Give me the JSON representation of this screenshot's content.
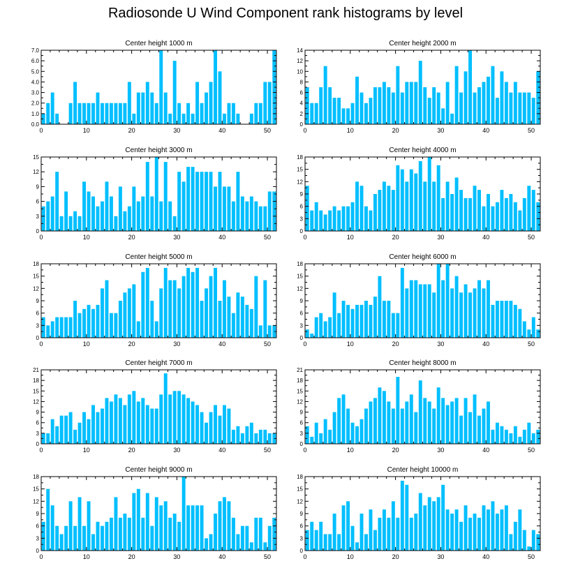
{
  "title": "Radiosonde U Wind Component rank histograms by level",
  "colors": {
    "bar": "#00BFFF",
    "axis": "#000000"
  },
  "chart_data": [
    {
      "type": "bar",
      "title": "Center height 1000 m",
      "xlim": [
        0,
        52
      ],
      "xticks": [
        0,
        10,
        20,
        30,
        40,
        50
      ],
      "ylim": [
        0,
        7
      ],
      "yticks": [
        0,
        1,
        2,
        3,
        4,
        5,
        6,
        7
      ],
      "ytick_labels": [
        "0.0",
        "1.0",
        "2.0",
        "3.0",
        "4.0",
        "5.0",
        "6.0",
        "7.0"
      ],
      "values": [
        1,
        2,
        3,
        1,
        0,
        0,
        2,
        4,
        2,
        2,
        2,
        2,
        3,
        2,
        2,
        2,
        2,
        2,
        2,
        4,
        1,
        3,
        3,
        4,
        3,
        2,
        7,
        3,
        1,
        6,
        2,
        1,
        2,
        1,
        4,
        2,
        3,
        4,
        7,
        5,
        1,
        2,
        2,
        1,
        0,
        0,
        1,
        2,
        2,
        4,
        4,
        7
      ]
    },
    {
      "type": "bar",
      "title": "Center height 2000 m",
      "xlim": [
        0,
        52
      ],
      "xticks": [
        0,
        10,
        20,
        30,
        40,
        50
      ],
      "ylim": [
        0,
        14
      ],
      "yticks": [
        0,
        2,
        4,
        6,
        8,
        10,
        12,
        14
      ],
      "ytick_labels": [
        "0",
        "2",
        "4",
        "6",
        "8",
        "10",
        "12",
        "14"
      ],
      "values": [
        7,
        4,
        4,
        7,
        11,
        7,
        5,
        5,
        3,
        3,
        4,
        9,
        6,
        4,
        5,
        7,
        7,
        8,
        7,
        6,
        11,
        6,
        8,
        8,
        8,
        12,
        7,
        5,
        7,
        6,
        3,
        8,
        2,
        11,
        6,
        10,
        14,
        6,
        7,
        8,
        9,
        11,
        5,
        10,
        8,
        6,
        8,
        6,
        6,
        6,
        5,
        10
      ]
    },
    {
      "type": "bar",
      "title": "Center height 3000 m",
      "xlim": [
        0,
        52
      ],
      "xticks": [
        0,
        10,
        20,
        30,
        40,
        50
      ],
      "ylim": [
        0,
        15
      ],
      "yticks": [
        0,
        3,
        6,
        9,
        12,
        15
      ],
      "ytick_labels": [
        "0",
        "3",
        "6",
        "9",
        "12",
        "15"
      ],
      "values": [
        5,
        6,
        7,
        12,
        3,
        8,
        3,
        4,
        3,
        10,
        8,
        7,
        5,
        6,
        10,
        7,
        3,
        9,
        4,
        5,
        9,
        6,
        7,
        14,
        7,
        15,
        6,
        14,
        6,
        3,
        12,
        10,
        13,
        13,
        12,
        12,
        12,
        12,
        9,
        12,
        9,
        9,
        6,
        12,
        7,
        6,
        7,
        6,
        5,
        5,
        8,
        8
      ]
    },
    {
      "type": "bar",
      "title": "Center height 4000 m",
      "xlim": [
        0,
        52
      ],
      "xticks": [
        0,
        10,
        20,
        30,
        40,
        50
      ],
      "ylim": [
        0,
        18
      ],
      "yticks": [
        0,
        3,
        6,
        9,
        12,
        15,
        18
      ],
      "ytick_labels": [
        "0",
        "3",
        "6",
        "9",
        "12",
        "15",
        "18"
      ],
      "values": [
        11,
        5,
        7,
        5,
        4,
        5,
        6,
        5,
        6,
        6,
        7,
        12,
        11,
        6,
        5,
        9,
        10,
        12,
        11,
        10,
        16,
        15,
        12,
        15,
        14,
        17,
        12,
        18,
        12,
        16,
        8,
        12,
        9,
        13,
        10,
        8,
        8,
        11,
        10,
        6,
        9,
        6,
        7,
        10,
        8,
        9,
        7,
        5,
        8,
        11,
        10,
        7
      ]
    },
    {
      "type": "bar",
      "title": "Center height 5000 m",
      "xlim": [
        0,
        52
      ],
      "xticks": [
        0,
        10,
        20,
        30,
        40,
        50
      ],
      "ylim": [
        0,
        18
      ],
      "yticks": [
        0,
        3,
        6,
        9,
        12,
        15,
        18
      ],
      "ytick_labels": [
        "0",
        "3",
        "6",
        "9",
        "12",
        "15",
        "18"
      ],
      "values": [
        5,
        3,
        4,
        5,
        5,
        5,
        5,
        9,
        6,
        7,
        8,
        7,
        8,
        12,
        14,
        6,
        6,
        9,
        11,
        12,
        13,
        4,
        16,
        17,
        9,
        4,
        12,
        17,
        14,
        14,
        12,
        15,
        17,
        16,
        17,
        9,
        12,
        15,
        17,
        9,
        14,
        10,
        6,
        11,
        10,
        8,
        7,
        15,
        3,
        14,
        3,
        3
      ]
    },
    {
      "type": "bar",
      "title": "Center height 6000 m",
      "xlim": [
        0,
        52
      ],
      "xticks": [
        0,
        10,
        20,
        30,
        40,
        50
      ],
      "ylim": [
        0,
        18
      ],
      "yticks": [
        0,
        3,
        6,
        9,
        12,
        15,
        18
      ],
      "ytick_labels": [
        "0",
        "3",
        "6",
        "9",
        "12",
        "15",
        "18"
      ],
      "values": [
        2,
        1,
        5,
        6,
        4,
        5,
        11,
        6,
        9,
        8,
        7,
        8,
        8,
        9,
        8,
        10,
        15,
        9,
        9,
        6,
        6,
        17,
        12,
        14,
        14,
        13,
        13,
        13,
        11,
        18,
        14,
        18,
        12,
        15,
        11,
        13,
        11,
        12,
        14,
        12,
        14,
        8,
        9,
        9,
        9,
        9,
        8,
        7,
        4,
        2,
        5,
        2
      ]
    },
    {
      "type": "bar",
      "title": "Center height 7000 m",
      "xlim": [
        0,
        52
      ],
      "xticks": [
        0,
        10,
        20,
        30,
        40,
        50
      ],
      "ylim": [
        0,
        21
      ],
      "yticks": [
        0,
        3,
        6,
        9,
        12,
        15,
        18,
        21
      ],
      "ytick_labels": [
        "0",
        "3",
        "6",
        "9",
        "12",
        "15",
        "18",
        "21"
      ],
      "values": [
        3,
        3,
        7,
        5,
        8,
        8,
        9,
        4,
        6,
        9,
        7,
        11,
        9,
        10,
        13,
        12,
        14,
        13,
        11,
        14,
        15,
        12,
        13,
        11,
        10,
        10,
        14,
        20,
        14,
        15,
        15,
        14,
        13,
        12,
        11,
        9,
        6,
        9,
        11,
        8,
        11,
        10,
        4,
        5,
        3,
        5,
        6,
        3,
        4,
        4,
        3,
        3
      ]
    },
    {
      "type": "bar",
      "title": "Center height 8000 m",
      "xlim": [
        0,
        52
      ],
      "xticks": [
        0,
        10,
        20,
        30,
        40,
        50
      ],
      "ylim": [
        0,
        21
      ],
      "yticks": [
        0,
        3,
        6,
        9,
        12,
        15,
        18,
        21
      ],
      "ytick_labels": [
        "0",
        "3",
        "6",
        "9",
        "12",
        "15",
        "18",
        "21"
      ],
      "values": [
        5,
        2,
        6,
        3,
        7,
        4,
        9,
        13,
        14,
        10,
        6,
        5,
        7,
        10,
        12,
        13,
        16,
        15,
        12,
        10,
        19,
        10,
        12,
        14,
        9,
        18,
        13,
        12,
        10,
        16,
        13,
        11,
        12,
        13,
        8,
        13,
        9,
        14,
        8,
        10,
        12,
        4,
        6,
        5,
        4,
        3,
        5,
        2,
        4,
        6,
        3,
        4
      ]
    },
    {
      "type": "bar",
      "title": "Center height 9000 m",
      "xlim": [
        0,
        52
      ],
      "xticks": [
        0,
        10,
        20,
        30,
        40,
        50
      ],
      "ylim": [
        0,
        18
      ],
      "yticks": [
        0,
        3,
        6,
        9,
        12,
        15,
        18
      ],
      "ytick_labels": [
        "0",
        "3",
        "6",
        "9",
        "12",
        "15",
        "18"
      ],
      "values": [
        7,
        15,
        11,
        6,
        4,
        6,
        12,
        6,
        13,
        6,
        12,
        4,
        7,
        6,
        7,
        8,
        13,
        8,
        9,
        8,
        14,
        15,
        8,
        14,
        6,
        13,
        11,
        12,
        8,
        9,
        7,
        18,
        11,
        11,
        11,
        11,
        3,
        4,
        9,
        12,
        13,
        12,
        8,
        4,
        6,
        6,
        2,
        8,
        8,
        2,
        6,
        8
      ]
    },
    {
      "type": "bar",
      "title": "Center height 10000 m",
      "xlim": [
        0,
        52
      ],
      "xticks": [
        0,
        10,
        20,
        30,
        40,
        50
      ],
      "ylim": [
        0,
        18
      ],
      "yticks": [
        0,
        3,
        6,
        9,
        12,
        15,
        18
      ],
      "ytick_labels": [
        "0",
        "3",
        "6",
        "9",
        "12",
        "15",
        "18"
      ],
      "values": [
        5,
        7,
        5,
        7,
        4,
        4,
        9,
        4,
        11,
        12,
        6,
        2,
        9,
        4,
        10,
        5,
        8,
        10,
        8,
        12,
        8,
        17,
        16,
        8,
        9,
        14,
        11,
        13,
        12,
        13,
        16,
        10,
        9,
        10,
        7,
        11,
        8,
        9,
        8,
        11,
        10,
        12,
        9,
        10,
        11,
        4,
        7,
        10,
        5,
        1,
        5,
        4
      ]
    }
  ]
}
